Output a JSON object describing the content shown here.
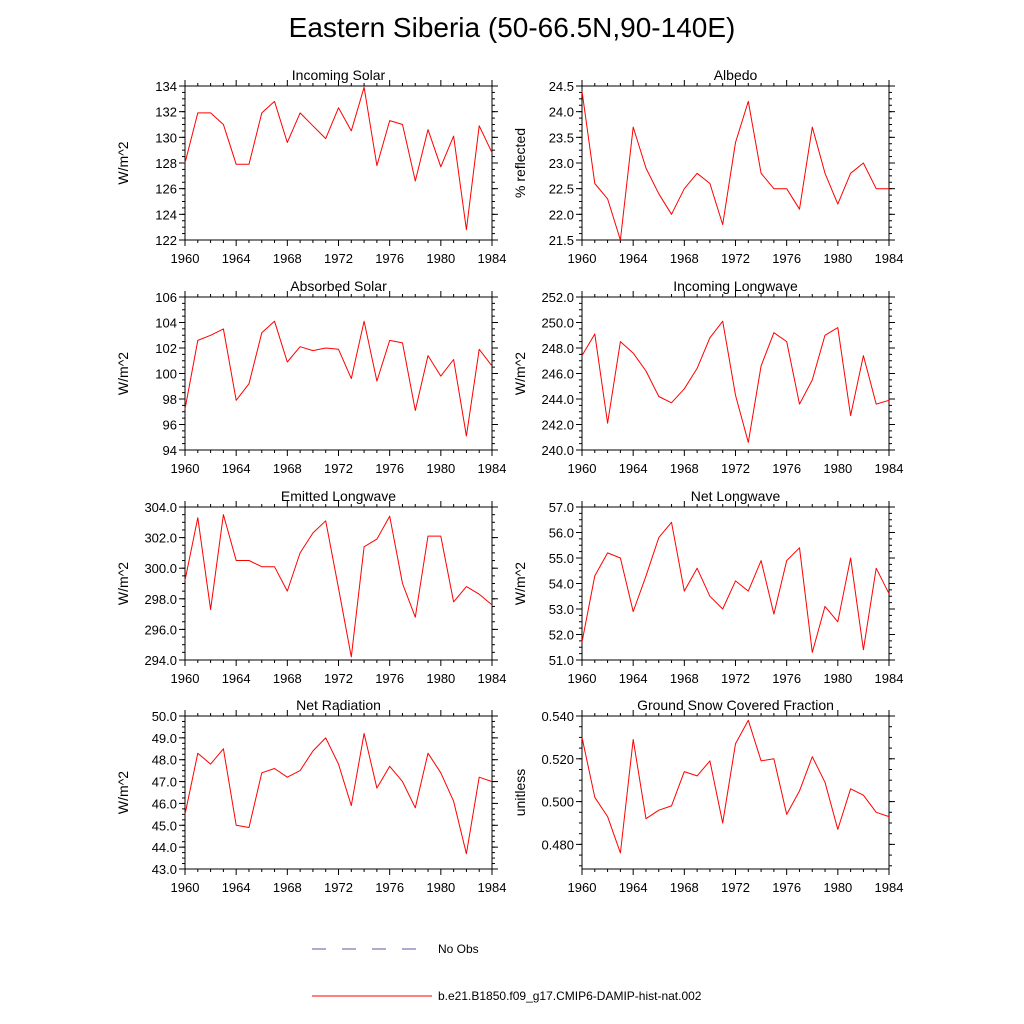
{
  "title": "Eastern Siberia (50-66.5N,90-140E)",
  "colors": {
    "series": "#ff0000",
    "noobs": "#5a5aa0",
    "axis": "#000000"
  },
  "legend": {
    "noobs_label": "No Obs",
    "series_label": "b.e21.B1850.f09_g17.CMIP6-DAMIP-hist-nat.002"
  },
  "chart_data": [
    {
      "type": "line",
      "title": "Incoming Solar",
      "ylabel": "W/m^2",
      "ylim": [
        122,
        134
      ],
      "yticks": [
        122,
        124,
        126,
        128,
        130,
        132,
        134
      ],
      "ydec": 0,
      "xlim": [
        1960,
        1984
      ],
      "xticks": [
        1960,
        1964,
        1968,
        1972,
        1976,
        1980,
        1984
      ],
      "x": [
        1960,
        1961,
        1962,
        1963,
        1964,
        1965,
        1966,
        1967,
        1968,
        1969,
        1970,
        1971,
        1972,
        1973,
        1974,
        1975,
        1976,
        1977,
        1978,
        1979,
        1980,
        1981,
        1982,
        1983,
        1984
      ],
      "series": [
        {
          "values": [
            128.0,
            131.9,
            131.9,
            131.0,
            127.9,
            127.9,
            131.9,
            132.8,
            129.6,
            131.9,
            130.9,
            129.9,
            132.3,
            130.5,
            133.9,
            127.8,
            131.3,
            131.0,
            126.6,
            130.6,
            127.7,
            130.1,
            122.8,
            130.9,
            128.8
          ]
        }
      ]
    },
    {
      "type": "line",
      "title": "Albedo",
      "ylabel": "% reflected",
      "ylim": [
        21.5,
        24.5
      ],
      "yticks": [
        21.5,
        22.0,
        22.5,
        23.0,
        23.5,
        24.0,
        24.5
      ],
      "ydec": 1,
      "xlim": [
        1960,
        1984
      ],
      "xticks": [
        1960,
        1964,
        1968,
        1972,
        1976,
        1980,
        1984
      ],
      "x": [
        1960,
        1961,
        1962,
        1963,
        1964,
        1965,
        1966,
        1967,
        1968,
        1969,
        1970,
        1971,
        1972,
        1973,
        1974,
        1975,
        1976,
        1977,
        1978,
        1979,
        1980,
        1981,
        1982,
        1983,
        1984
      ],
      "series": [
        {
          "values": [
            24.4,
            22.6,
            22.3,
            21.5,
            23.7,
            22.9,
            22.4,
            22.0,
            22.5,
            22.8,
            22.6,
            21.8,
            23.4,
            24.2,
            22.8,
            22.5,
            22.5,
            22.1,
            23.7,
            22.8,
            22.2,
            22.8,
            23.0,
            22.5,
            22.5
          ]
        }
      ]
    },
    {
      "type": "line",
      "title": "Absorbed Solar",
      "ylabel": "W/m^2",
      "ylim": [
        94,
        106
      ],
      "yticks": [
        94,
        96,
        98,
        100,
        102,
        104,
        106
      ],
      "ydec": 0,
      "xlim": [
        1960,
        1984
      ],
      "xticks": [
        1960,
        1964,
        1968,
        1972,
        1976,
        1980,
        1984
      ],
      "x": [
        1960,
        1961,
        1962,
        1963,
        1964,
        1965,
        1966,
        1967,
        1968,
        1969,
        1970,
        1971,
        1972,
        1973,
        1974,
        1975,
        1976,
        1977,
        1978,
        1979,
        1980,
        1981,
        1982,
        1983,
        1984
      ],
      "series": [
        {
          "values": [
            97.2,
            102.6,
            103.0,
            103.5,
            97.9,
            99.2,
            103.2,
            104.1,
            100.9,
            102.1,
            101.8,
            102.0,
            101.9,
            99.6,
            104.1,
            99.4,
            102.6,
            102.4,
            97.1,
            101.4,
            99.8,
            101.1,
            95.1,
            101.9,
            100.6
          ]
        }
      ]
    },
    {
      "type": "line",
      "title": "Incoming Longwave",
      "ylabel": "W/m^2",
      "ylim": [
        240,
        252
      ],
      "yticks": [
        240,
        242,
        244,
        246,
        248,
        250,
        252
      ],
      "ydec": 1,
      "xlim": [
        1960,
        1984
      ],
      "xticks": [
        1960,
        1964,
        1968,
        1972,
        1976,
        1980,
        1984
      ],
      "x": [
        1960,
        1961,
        1962,
        1963,
        1964,
        1965,
        1966,
        1967,
        1968,
        1969,
        1970,
        1971,
        1972,
        1973,
        1974,
        1975,
        1976,
        1977,
        1978,
        1979,
        1980,
        1981,
        1982,
        1983,
        1984
      ],
      "series": [
        {
          "values": [
            247.4,
            249.1,
            242.1,
            248.5,
            247.6,
            246.2,
            244.2,
            243.7,
            244.8,
            246.4,
            248.8,
            250.1,
            244.3,
            240.6,
            246.6,
            249.2,
            248.5,
            243.6,
            245.5,
            249.0,
            249.6,
            242.7,
            247.4,
            243.6,
            243.9
          ]
        }
      ]
    },
    {
      "type": "line",
      "title": "Emitted Longwave",
      "ylabel": "W/m^2",
      "ylim": [
        294,
        304
      ],
      "yticks": [
        294,
        296,
        298,
        300,
        302,
        304
      ],
      "ydec": 1,
      "xlim": [
        1960,
        1984
      ],
      "xticks": [
        1960,
        1964,
        1968,
        1972,
        1976,
        1980,
        1984
      ],
      "x": [
        1960,
        1961,
        1962,
        1963,
        1964,
        1965,
        1966,
        1967,
        1968,
        1969,
        1970,
        1971,
        1972,
        1973,
        1974,
        1975,
        1976,
        1977,
        1978,
        1979,
        1980,
        1981,
        1982,
        1983,
        1984
      ],
      "series": [
        {
          "values": [
            299.2,
            303.3,
            297.3,
            303.5,
            300.5,
            300.5,
            300.1,
            300.1,
            298.5,
            301.0,
            302.3,
            303.1,
            298.7,
            294.2,
            301.4,
            301.9,
            303.4,
            299.0,
            296.8,
            302.1,
            302.1,
            297.8,
            298.8,
            298.3,
            297.6
          ]
        }
      ]
    },
    {
      "type": "line",
      "title": "Net Longwave",
      "ylabel": "W/m^2",
      "ylim": [
        51,
        57
      ],
      "yticks": [
        51,
        52,
        53,
        54,
        55,
        56,
        57
      ],
      "ydec": 1,
      "xlim": [
        1960,
        1984
      ],
      "xticks": [
        1960,
        1964,
        1968,
        1972,
        1976,
        1980,
        1984
      ],
      "x": [
        1960,
        1961,
        1962,
        1963,
        1964,
        1965,
        1966,
        1967,
        1968,
        1969,
        1970,
        1971,
        1972,
        1973,
        1974,
        1975,
        1976,
        1977,
        1978,
        1979,
        1980,
        1981,
        1982,
        1983,
        1984
      ],
      "series": [
        {
          "values": [
            51.7,
            54.3,
            55.2,
            55.0,
            52.9,
            54.3,
            55.8,
            56.4,
            53.7,
            54.6,
            53.5,
            53.0,
            54.1,
            53.7,
            54.9,
            52.8,
            54.9,
            55.4,
            51.3,
            53.1,
            52.5,
            55.0,
            51.4,
            54.6,
            53.6
          ]
        }
      ]
    },
    {
      "type": "line",
      "title": "Net Radiation",
      "ylabel": "W/m^2",
      "ylim": [
        43,
        50
      ],
      "yticks": [
        43,
        44,
        45,
        46,
        47,
        48,
        49,
        50
      ],
      "ydec": 1,
      "xlim": [
        1960,
        1984
      ],
      "xticks": [
        1960,
        1964,
        1968,
        1972,
        1976,
        1980,
        1984
      ],
      "x": [
        1960,
        1961,
        1962,
        1963,
        1964,
        1965,
        1966,
        1967,
        1968,
        1969,
        1970,
        1971,
        1972,
        1973,
        1974,
        1975,
        1976,
        1977,
        1978,
        1979,
        1980,
        1981,
        1982,
        1983,
        1984
      ],
      "series": [
        {
          "values": [
            45.5,
            48.3,
            47.8,
            48.5,
            45.0,
            44.9,
            47.4,
            47.6,
            47.2,
            47.5,
            48.4,
            49.0,
            47.8,
            45.9,
            49.2,
            46.7,
            47.7,
            47.0,
            45.8,
            48.3,
            47.4,
            46.1,
            43.7,
            47.2,
            47.0
          ]
        }
      ]
    },
    {
      "type": "line",
      "title": "Ground Snow Covered Fraction",
      "ylabel": "unitless",
      "ylim": [
        0.4685,
        0.54
      ],
      "yticks": [
        0.48,
        0.5,
        0.52,
        0.54
      ],
      "ydec": 3,
      "xlim": [
        1960,
        1984
      ],
      "xticks": [
        1960,
        1964,
        1968,
        1972,
        1976,
        1980,
        1984
      ],
      "x": [
        1960,
        1961,
        1962,
        1963,
        1964,
        1965,
        1966,
        1967,
        1968,
        1969,
        1970,
        1971,
        1972,
        1973,
        1974,
        1975,
        1976,
        1977,
        1978,
        1979,
        1980,
        1981,
        1982,
        1983,
        1984
      ],
      "series": [
        {
          "values": [
            0.53,
            0.502,
            0.493,
            0.476,
            0.529,
            0.492,
            0.496,
            0.498,
            0.514,
            0.512,
            0.519,
            0.49,
            0.527,
            0.538,
            0.519,
            0.52,
            0.494,
            0.505,
            0.521,
            0.509,
            0.487,
            0.506,
            0.503,
            0.495,
            0.493
          ]
        }
      ]
    }
  ]
}
